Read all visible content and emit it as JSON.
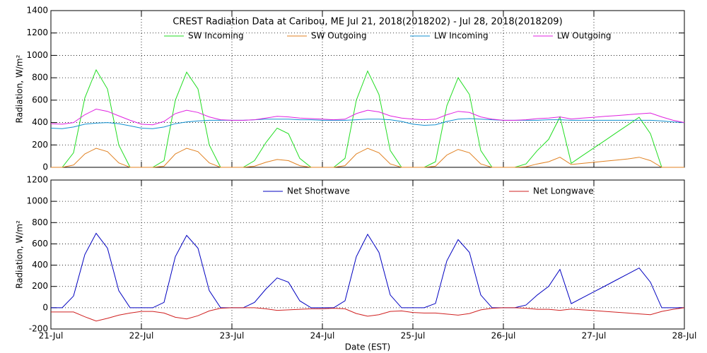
{
  "chart_data": [
    {
      "type": "line",
      "title": "CREST Radiation Data at Caribou, ME   Jul 21, 2018(2018202) - Jul 28, 2018(2018209)",
      "ylabel": "Radiation, W/m²",
      "x": [
        0,
        0.125,
        0.25,
        0.375,
        0.5,
        0.625,
        0.75,
        0.875,
        1,
        1.125,
        1.25,
        1.375,
        1.5,
        1.625,
        1.75,
        1.875,
        2,
        2.125,
        2.25,
        2.375,
        2.5,
        2.625,
        2.75,
        2.875,
        3,
        3.125,
        3.25,
        3.375,
        3.5,
        3.625,
        3.75,
        3.875,
        4,
        4.125,
        4.25,
        4.375,
        4.5,
        4.625,
        4.75,
        4.875,
        5,
        5.125,
        5.25,
        5.375,
        5.5,
        5.625,
        5.75,
        5.875,
        6,
        6.125,
        6.25,
        6.375,
        6.5,
        6.625,
        6.75,
        6.875,
        7
      ],
      "series": [
        {
          "name": "SW Incoming",
          "color": "#22dd22",
          "values": [
            0,
            0,
            130,
            620,
            870,
            700,
            200,
            0,
            0,
            0,
            60,
            600,
            850,
            700,
            200,
            0,
            0,
            0,
            60,
            220,
            350,
            300,
            80,
            0,
            0,
            0,
            80,
            600,
            860,
            650,
            150,
            0,
            0,
            0,
            50,
            550,
            800,
            650,
            150,
            0,
            0,
            0,
            30,
            150,
            250,
            450,
            36,
            105,
            173,
            241,
            310,
            378,
            447,
            300,
            0,
            0,
            0
          ]
        },
        {
          "name": "SW Outgoing",
          "color": "#e08020",
          "values": [
            0,
            0,
            20,
            120,
            170,
            140,
            40,
            0,
            0,
            0,
            10,
            120,
            170,
            140,
            40,
            0,
            0,
            0,
            10,
            45,
            70,
            60,
            15,
            0,
            0,
            0,
            15,
            120,
            170,
            130,
            30,
            0,
            0,
            0,
            10,
            110,
            160,
            130,
            30,
            0,
            0,
            0,
            5,
            30,
            50,
            90,
            25,
            35,
            45,
            55,
            65,
            75,
            90,
            60,
            0,
            0,
            0
          ]
        },
        {
          "name": "LW Incoming",
          "color": "#1090d0",
          "values": [
            350,
            345,
            360,
            385,
            395,
            400,
            390,
            370,
            350,
            345,
            360,
            390,
            405,
            415,
            420,
            420,
            420,
            420,
            425,
            430,
            430,
            430,
            425,
            425,
            420,
            420,
            420,
            425,
            430,
            430,
            425,
            410,
            385,
            375,
            380,
            410,
            430,
            435,
            430,
            425,
            420,
            420,
            420,
            420,
            425,
            425,
            420,
            420,
            420,
            420,
            420,
            420,
            420,
            420,
            415,
            405,
            400
          ]
        },
        {
          "name": "LW Outgoing",
          "color": "#e020e0",
          "values": [
            390,
            385,
            400,
            470,
            520,
            500,
            460,
            420,
            385,
            380,
            410,
            480,
            510,
            490,
            450,
            425,
            420,
            420,
            425,
            440,
            455,
            450,
            440,
            435,
            430,
            425,
            430,
            480,
            510,
            495,
            460,
            440,
            430,
            425,
            430,
            470,
            500,
            490,
            450,
            430,
            420,
            420,
            425,
            435,
            440,
            450,
            432,
            440,
            447,
            455,
            462,
            470,
            478,
            485,
            450,
            420,
            400
          ]
        }
      ],
      "xlim": [
        0,
        7
      ],
      "xticks": [
        0,
        1,
        2,
        3,
        4,
        5,
        6,
        7
      ],
      "ylim": [
        0,
        1400
      ],
      "yticks": [
        0,
        200,
        400,
        600,
        800,
        1000,
        1200,
        1400
      ],
      "grid": true
    },
    {
      "type": "line",
      "ylabel": "Radiation, W/m²",
      "xlabel": "Date (EST)",
      "x": [
        0,
        0.125,
        0.25,
        0.375,
        0.5,
        0.625,
        0.75,
        0.875,
        1,
        1.125,
        1.25,
        1.375,
        1.5,
        1.625,
        1.75,
        1.875,
        2,
        2.125,
        2.25,
        2.375,
        2.5,
        2.625,
        2.75,
        2.875,
        3,
        3.125,
        3.25,
        3.375,
        3.5,
        3.625,
        3.75,
        3.875,
        4,
        4.125,
        4.25,
        4.375,
        4.5,
        4.625,
        4.75,
        4.875,
        5,
        5.125,
        5.25,
        5.375,
        5.5,
        5.625,
        5.75,
        5.875,
        6,
        6.125,
        6.25,
        6.375,
        6.5,
        6.625,
        6.75,
        6.875,
        7
      ],
      "series": [
        {
          "name": "Net Shortwave",
          "color": "#0000c0",
          "values": [
            0,
            0,
            110,
            500,
            700,
            560,
            160,
            0,
            0,
            0,
            50,
            480,
            680,
            560,
            160,
            0,
            0,
            0,
            50,
            175,
            280,
            240,
            65,
            0,
            0,
            0,
            65,
            480,
            690,
            520,
            120,
            0,
            0,
            0,
            40,
            440,
            640,
            520,
            120,
            0,
            0,
            0,
            25,
            120,
            200,
            360,
            38,
            94,
            150,
            205,
            261,
            317,
            373,
            240,
            0,
            0,
            0
          ]
        },
        {
          "name": "Net Longwave",
          "color": "#d02020",
          "values": [
            -40,
            -40,
            -40,
            -85,
            -125,
            -100,
            -70,
            -50,
            -35,
            -35,
            -50,
            -90,
            -105,
            -75,
            -30,
            -5,
            0,
            0,
            0,
            -10,
            -25,
            -20,
            -15,
            -10,
            -10,
            -5,
            -10,
            -55,
            -80,
            -65,
            -35,
            -30,
            -45,
            -50,
            -50,
            -60,
            -70,
            -55,
            -20,
            -5,
            0,
            0,
            -5,
            -15,
            -15,
            -25,
            -12,
            -20,
            -27,
            -35,
            -42,
            -50,
            -58,
            -65,
            -35,
            -15,
            0
          ]
        }
      ],
      "xlim": [
        0,
        7
      ],
      "xticks": [
        {
          "value": 0,
          "label": "21-Jul"
        },
        {
          "value": 1,
          "label": "22-Jul"
        },
        {
          "value": 2,
          "label": "23-Jul"
        },
        {
          "value": 3,
          "label": "24-Jul"
        },
        {
          "value": 4,
          "label": "25-Jul"
        },
        {
          "value": 5,
          "label": "26-Jul"
        },
        {
          "value": 6,
          "label": "27-Jul"
        },
        {
          "value": 7,
          "label": "28-Jul"
        }
      ],
      "ylim": [
        -200,
        1200
      ],
      "yticks": [
        -200,
        0,
        200,
        400,
        600,
        800,
        1000,
        1200
      ],
      "grid": true
    }
  ]
}
